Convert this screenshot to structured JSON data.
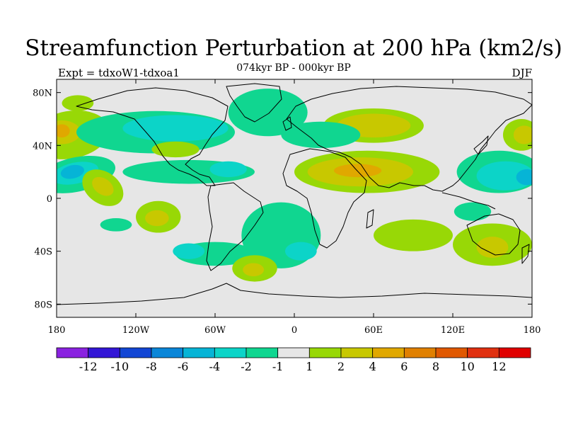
{
  "chart_data": {
    "type": "heatmap",
    "title": "Streamfunction Perturbation at 200 hPa (km2/s)",
    "subtitle": "074kyr BP - 000kyr BP",
    "left_label": "Expt = tdxoW1-tdxoa1",
    "right_label": "DJF",
    "projection": "cylindrical equidistant",
    "xlim": [
      -180,
      180
    ],
    "ylim": [
      -90,
      90
    ],
    "x_ticks": [
      {
        "value": -180,
        "label": "180"
      },
      {
        "value": -120,
        "label": "120W"
      },
      {
        "value": -60,
        "label": "60W"
      },
      {
        "value": 0,
        "label": "0"
      },
      {
        "value": 60,
        "label": "60E"
      },
      {
        "value": 120,
        "label": "120E"
      },
      {
        "value": 180,
        "label": "180"
      }
    ],
    "y_ticks": [
      {
        "value": 80,
        "label": "80N"
      },
      {
        "value": 40,
        "label": "40N"
      },
      {
        "value": 0,
        "label": "0"
      },
      {
        "value": -40,
        "label": "40S"
      },
      {
        "value": -80,
        "label": "80S"
      }
    ],
    "colorbar": {
      "levels": [
        "-12",
        "-10",
        "-8",
        "-6",
        "-4",
        "-2",
        "-1",
        "1",
        "2",
        "4",
        "6",
        "8",
        "10",
        "12"
      ],
      "colors": [
        "#8a22e0",
        "#3316d6",
        "#1246d4",
        "#0a86d8",
        "#06b4d6",
        "#0cd4c8",
        "#10d690",
        "#e6e6e6",
        "#98d806",
        "#c8c800",
        "#e0a800",
        "#e08000",
        "#e05800",
        "#e03010",
        "#e00000"
      ]
    },
    "background_color": "#e6e6e6",
    "regions": [
      {
        "name": "n-pacific-2",
        "value": 2,
        "lon": -170,
        "lat": 48,
        "rx": 30,
        "ry": 18,
        "rot": -10,
        "color": "#98d806"
      },
      {
        "name": "n-pacific-4",
        "value": 4,
        "lon": -176,
        "lat": 50,
        "rx": 14,
        "ry": 9,
        "rot": 0,
        "color": "#c8c800"
      },
      {
        "name": "n-pacific-6",
        "value": 6,
        "lon": -176,
        "lat": 51,
        "rx": 6,
        "ry": 5,
        "rot": 0,
        "color": "#e0a800"
      },
      {
        "name": "arctic-2",
        "value": 2,
        "lon": -164,
        "lat": 72,
        "rx": 12,
        "ry": 6,
        "rot": 0,
        "color": "#98d806"
      },
      {
        "name": "north-america-low",
        "value": -2,
        "lon": -105,
        "lat": 50,
        "rx": 60,
        "ry": 16,
        "rot": 0,
        "color": "#10d690"
      },
      {
        "name": "north-america-low-core",
        "value": -4,
        "lon": -90,
        "lat": 53,
        "rx": 40,
        "ry": 10,
        "rot": 0,
        "color": "#0cd4c8"
      },
      {
        "name": "north-atlantic-low",
        "value": -2,
        "lon": -20,
        "lat": 65,
        "rx": 30,
        "ry": 18,
        "rot": 0,
        "color": "#10d690"
      },
      {
        "name": "pacific-subtropical-low",
        "value": -2,
        "lon": -165,
        "lat": 18,
        "rx": 30,
        "ry": 13,
        "rot": -12,
        "color": "#10d690"
      },
      {
        "name": "pacific-subtropical-core",
        "value": -4,
        "lon": -166,
        "lat": 19,
        "rx": 18,
        "ry": 8,
        "rot": -12,
        "color": "#0cd4c8"
      },
      {
        "name": "pacific-subtropical-inner",
        "value": -6,
        "lon": -168,
        "lat": 20,
        "rx": 9,
        "ry": 5,
        "rot": -12,
        "color": "#06b4d6"
      },
      {
        "name": "tropical-band-low",
        "value": -2,
        "lon": -80,
        "lat": 20,
        "rx": 50,
        "ry": 9,
        "rot": 0,
        "color": "#10d690"
      },
      {
        "name": "caribbean-low",
        "value": -4,
        "lon": -50,
        "lat": 22,
        "rx": 14,
        "ry": 6,
        "rot": 0,
        "color": "#0cd4c8"
      },
      {
        "name": "us-high",
        "value": 2,
        "lon": -90,
        "lat": 37,
        "rx": 18,
        "ry": 6,
        "rot": 0,
        "color": "#98d806"
      },
      {
        "name": "central-pacific-high",
        "value": 2,
        "lon": -145,
        "lat": 8,
        "rx": 17,
        "ry": 12,
        "rot": 35,
        "color": "#98d806"
      },
      {
        "name": "central-pacific-high-core",
        "value": 4,
        "lon": -145,
        "lat": 9,
        "rx": 9,
        "ry": 6,
        "rot": 35,
        "color": "#c8c800"
      },
      {
        "name": "south-pacific-high",
        "value": 2,
        "lon": -103,
        "lat": -14,
        "rx": 17,
        "ry": 12,
        "rot": 0,
        "color": "#98d806"
      },
      {
        "name": "south-pacific-high-core",
        "value": 4,
        "lon": -104,
        "lat": -15,
        "rx": 9,
        "ry": 6,
        "rot": 0,
        "color": "#c8c800"
      },
      {
        "name": "south-pacific-low",
        "value": -2,
        "lon": -135,
        "lat": -20,
        "rx": 12,
        "ry": 5,
        "rot": 0,
        "color": "#10d690"
      },
      {
        "name": "south-atlantic-low",
        "value": -2,
        "lon": -10,
        "lat": -28,
        "rx": 30,
        "ry": 25,
        "rot": 0,
        "color": "#10d690"
      },
      {
        "name": "south-atlantic-low-core",
        "value": -4,
        "lon": 5,
        "lat": -40,
        "rx": 12,
        "ry": 7,
        "rot": 0,
        "color": "#0cd4c8"
      },
      {
        "name": "south-america-low",
        "value": -2,
        "lon": -60,
        "lat": -42,
        "rx": 30,
        "ry": 9,
        "rot": 0,
        "color": "#10d690"
      },
      {
        "name": "south-america-low-core",
        "value": -4,
        "lon": -80,
        "lat": -40,
        "rx": 12,
        "ry": 6,
        "rot": 0,
        "color": "#0cd4c8"
      },
      {
        "name": "southern-ocean-high",
        "value": 2,
        "lon": -30,
        "lat": -53,
        "rx": 17,
        "ry": 10,
        "rot": 0,
        "color": "#98d806"
      },
      {
        "name": "southern-ocean-high-core",
        "value": 4,
        "lon": -31,
        "lat": -54,
        "rx": 8,
        "ry": 5,
        "rot": 0,
        "color": "#c8c800"
      },
      {
        "name": "eurasia-high",
        "value": 2,
        "lon": 55,
        "lat": 20,
        "rx": 55,
        "ry": 16,
        "rot": 0,
        "color": "#98d806"
      },
      {
        "name": "eurasia-high-inner",
        "value": 4,
        "lon": 50,
        "lat": 20,
        "rx": 40,
        "ry": 11,
        "rot": 0,
        "color": "#c8c800"
      },
      {
        "name": "middle-east-high",
        "value": 6,
        "lon": 48,
        "lat": 21,
        "rx": 18,
        "ry": 5,
        "rot": 0,
        "color": "#e0a800"
      },
      {
        "name": "siberia-high",
        "value": 2,
        "lon": 60,
        "lat": 55,
        "rx": 38,
        "ry": 13,
        "rot": 0,
        "color": "#98d806"
      },
      {
        "name": "siberia-high-core",
        "value": 4,
        "lon": 60,
        "lat": 55,
        "rx": 28,
        "ry": 9,
        "rot": 0,
        "color": "#c8c800"
      },
      {
        "name": "central-asia-low",
        "value": -2,
        "lon": 20,
        "lat": 48,
        "rx": 30,
        "ry": 10,
        "rot": 0,
        "color": "#10d690"
      },
      {
        "name": "west-pacific-low",
        "value": -2,
        "lon": 155,
        "lat": 20,
        "rx": 32,
        "ry": 16,
        "rot": 0,
        "color": "#10d690"
      },
      {
        "name": "west-pacific-low-core",
        "value": -4,
        "lon": 160,
        "lat": 17,
        "rx": 22,
        "ry": 11,
        "rot": 0,
        "color": "#0cd4c8"
      },
      {
        "name": "west-pacific-low-inner",
        "value": -6,
        "lon": 176,
        "lat": 16,
        "rx": 8,
        "ry": 6,
        "rot": 0,
        "color": "#06b4d6"
      },
      {
        "name": "nw-pacific-high",
        "value": 2,
        "lon": 172,
        "lat": 48,
        "rx": 14,
        "ry": 12,
        "rot": 0,
        "color": "#98d806"
      },
      {
        "name": "nw-pacific-high-core",
        "value": 4,
        "lon": 174,
        "lat": 48,
        "rx": 8,
        "ry": 7,
        "rot": 0,
        "color": "#c8c800"
      },
      {
        "name": "indian-ocean-high",
        "value": 2,
        "lon": 90,
        "lat": -28,
        "rx": 30,
        "ry": 12,
        "rot": 0,
        "color": "#98d806"
      },
      {
        "name": "australia-high",
        "value": 2,
        "lon": 150,
        "lat": -35,
        "rx": 30,
        "ry": 16,
        "rot": 0,
        "color": "#98d806"
      },
      {
        "name": "australia-high-core",
        "value": 4,
        "lon": 150,
        "lat": -37,
        "rx": 12,
        "ry": 8,
        "rot": 0,
        "color": "#c8c800"
      },
      {
        "name": "south-pacific-west-low",
        "value": -2,
        "lon": 135,
        "lat": -10,
        "rx": 14,
        "ry": 7,
        "rot": 0,
        "color": "#10d690"
      }
    ]
  }
}
